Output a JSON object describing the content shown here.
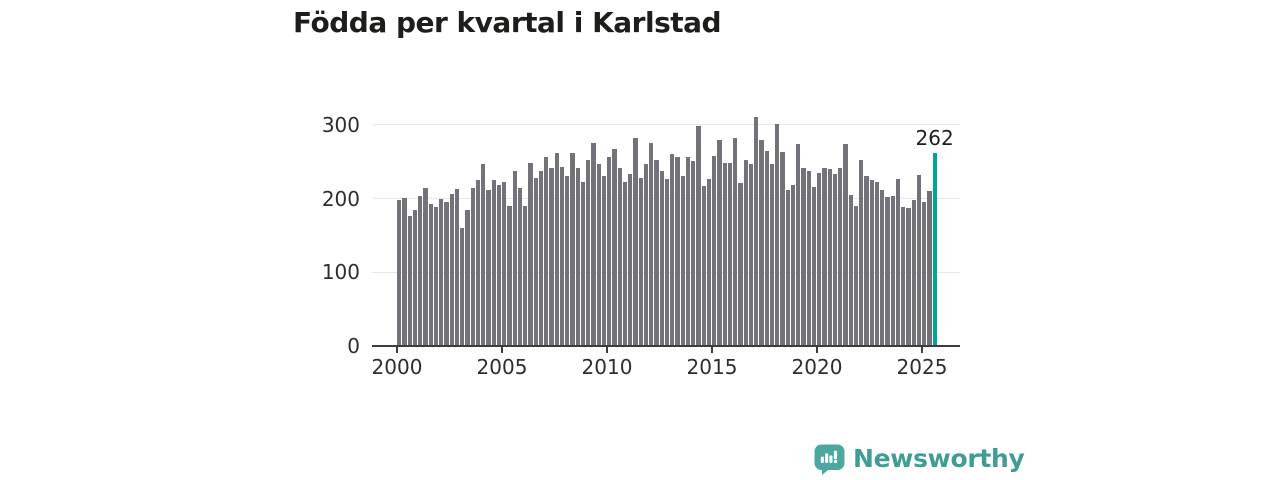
{
  "chart_data": {
    "type": "bar",
    "title": "Födda per kvartal i Karlstad",
    "frequency": "quarterly",
    "start_period": "2000-Q1",
    "end_period": "2025-Q3",
    "x_ticks": [
      {
        "label": "2000",
        "bar_index": 0
      },
      {
        "label": "2005",
        "bar_index": 20
      },
      {
        "label": "2010",
        "bar_index": 40
      },
      {
        "label": "2015",
        "bar_index": 60
      },
      {
        "label": "2020",
        "bar_index": 80
      },
      {
        "label": "2025",
        "bar_index": 100
      }
    ],
    "y_ticks": [
      0,
      100,
      200,
      300
    ],
    "ylim": [
      0,
      325
    ],
    "grid": true,
    "legend": false,
    "bar_color": "#73727a",
    "values": [
      198,
      201,
      176,
      184,
      203,
      214,
      193,
      189,
      200,
      195,
      207,
      213,
      160,
      184,
      214,
      225,
      247,
      212,
      225,
      218,
      222,
      190,
      237,
      215,
      190,
      249,
      228,
      237,
      256,
      241,
      262,
      243,
      231,
      262,
      241,
      222,
      252,
      275,
      247,
      231,
      257,
      267,
      241,
      222,
      233,
      282,
      228,
      247,
      276,
      252,
      237,
      227,
      260,
      256,
      231,
      257,
      251,
      299,
      217,
      227,
      258,
      279,
      249,
      249,
      282,
      221,
      253,
      247,
      311,
      279,
      265,
      247,
      301,
      263,
      212,
      219,
      274,
      242,
      237,
      216,
      235,
      242,
      240,
      233,
      242,
      274,
      205,
      190,
      253,
      231,
      226,
      222,
      212,
      202,
      204,
      227,
      189,
      188,
      198,
      232,
      195,
      211,
      262
    ],
    "highlight": {
      "index": 102,
      "value": 262,
      "label": "262",
      "color": "#00a49b"
    }
  },
  "footer": {
    "brand": "Newsworthy",
    "logo_color": "#4ba7a0",
    "wordmark_color": "#3f9d96"
  }
}
